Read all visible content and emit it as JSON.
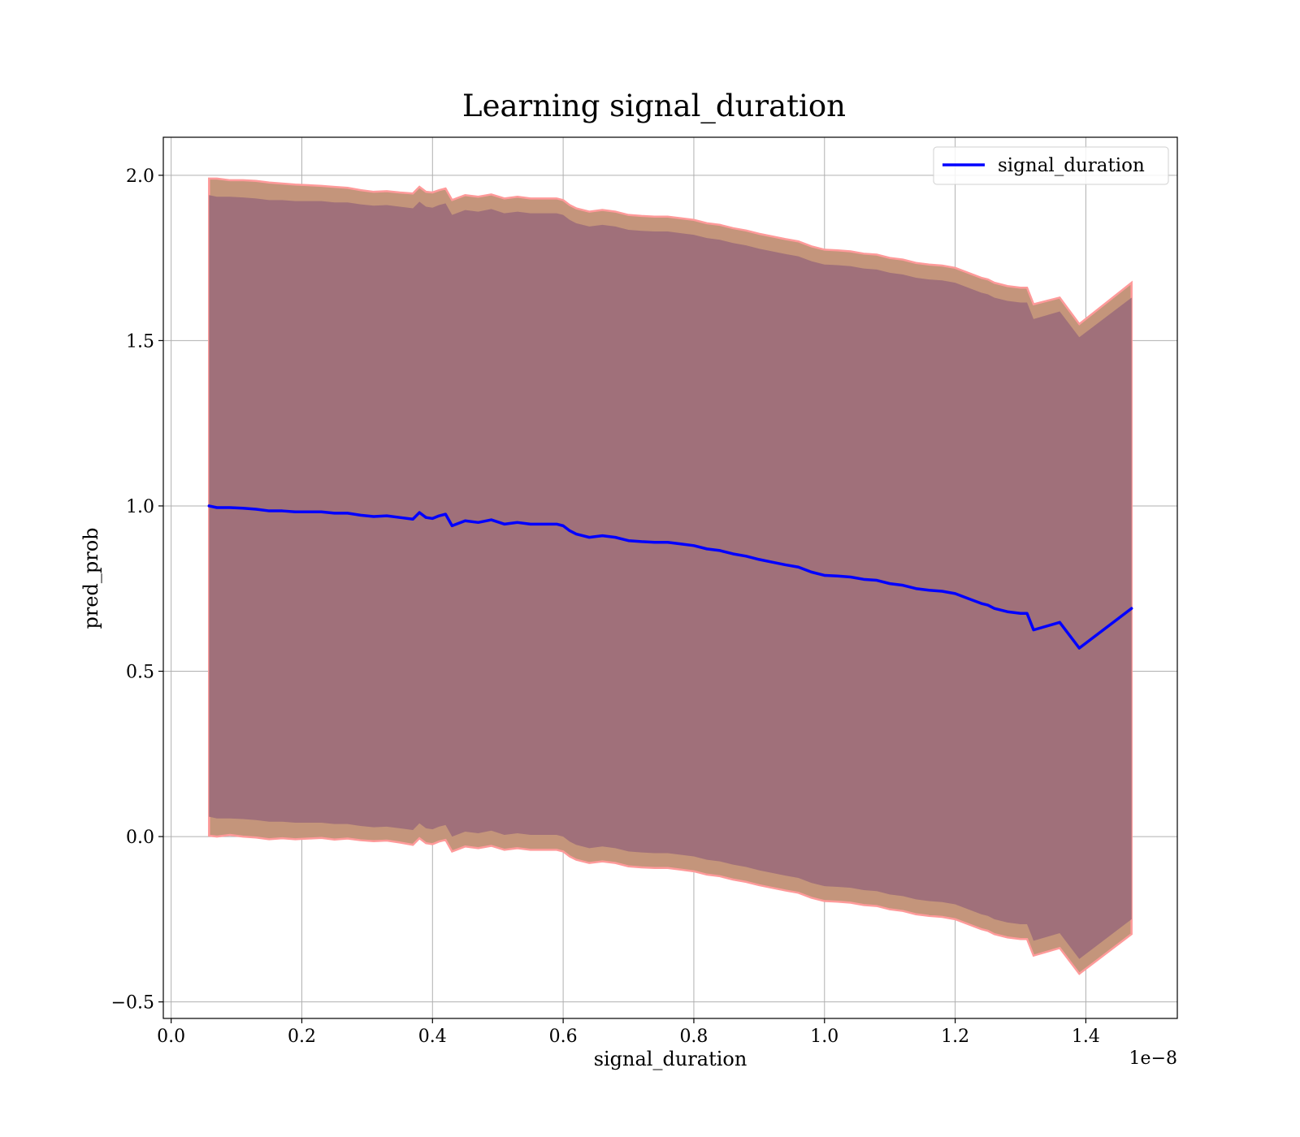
{
  "chart_data": {
    "type": "line",
    "title": "Learning signal_duration",
    "xlabel": "signal_duration",
    "ylabel": "pred_prob",
    "x_offset_text": "1e−8",
    "xlim": [
      -0.012,
      1.54
    ],
    "ylim": [
      -0.55,
      2.115
    ],
    "xticks": [
      0.0,
      0.2,
      0.4,
      0.6,
      0.8,
      1.0,
      1.2,
      1.4
    ],
    "xtick_labels": [
      "0.0",
      "0.2",
      "0.4",
      "0.6",
      "0.8",
      "1.0",
      "1.2",
      "1.4"
    ],
    "yticks": [
      -0.5,
      0.0,
      0.5,
      1.0,
      1.5,
      2.0
    ],
    "ytick_labels": [
      "−0.5",
      "0.0",
      "0.5",
      "1.0",
      "1.5",
      "2.0"
    ],
    "grid": true,
    "legend_position": "top-right",
    "colors": {
      "line": "#0000ff",
      "inner_band": "#a0707a",
      "outer_band": "#c4957b",
      "band_edge": "#ff9a9a",
      "frame": "#000000"
    },
    "series": [
      {
        "name": "signal_duration",
        "x": [
          0.058,
          0.07,
          0.09,
          0.11,
          0.13,
          0.15,
          0.17,
          0.19,
          0.21,
          0.23,
          0.25,
          0.27,
          0.29,
          0.31,
          0.33,
          0.35,
          0.37,
          0.38,
          0.39,
          0.4,
          0.41,
          0.42,
          0.43,
          0.45,
          0.47,
          0.49,
          0.51,
          0.53,
          0.55,
          0.57,
          0.59,
          0.6,
          0.61,
          0.62,
          0.64,
          0.66,
          0.68,
          0.7,
          0.72,
          0.74,
          0.76,
          0.78,
          0.8,
          0.82,
          0.84,
          0.86,
          0.88,
          0.9,
          0.92,
          0.94,
          0.96,
          0.98,
          1.0,
          1.02,
          1.04,
          1.06,
          1.08,
          1.1,
          1.12,
          1.14,
          1.16,
          1.18,
          1.2,
          1.22,
          1.24,
          1.25,
          1.26,
          1.28,
          1.3,
          1.31,
          1.32,
          1.36,
          1.39,
          1.47
        ],
        "y": [
          1.0,
          0.995,
          0.995,
          0.993,
          0.99,
          0.985,
          0.985,
          0.982,
          0.982,
          0.982,
          0.978,
          0.978,
          0.972,
          0.968,
          0.97,
          0.965,
          0.96,
          0.98,
          0.965,
          0.962,
          0.97,
          0.975,
          0.94,
          0.955,
          0.95,
          0.958,
          0.945,
          0.95,
          0.945,
          0.945,
          0.945,
          0.94,
          0.925,
          0.915,
          0.905,
          0.91,
          0.905,
          0.895,
          0.892,
          0.89,
          0.89,
          0.885,
          0.88,
          0.87,
          0.865,
          0.855,
          0.848,
          0.838,
          0.83,
          0.822,
          0.815,
          0.8,
          0.79,
          0.788,
          0.785,
          0.778,
          0.775,
          0.765,
          0.76,
          0.75,
          0.745,
          0.742,
          0.735,
          0.72,
          0.705,
          0.7,
          0.69,
          0.68,
          0.675,
          0.675,
          0.625,
          0.648,
          0.57,
          0.69
        ]
      }
    ],
    "bands": [
      {
        "kind": "outer",
        "upper": [
          1.99,
          1.99,
          1.985,
          1.985,
          1.983,
          1.978,
          1.975,
          1.972,
          1.97,
          1.968,
          1.965,
          1.962,
          1.955,
          1.95,
          1.952,
          1.948,
          1.945,
          1.965,
          1.95,
          1.948,
          1.955,
          1.96,
          1.925,
          1.94,
          1.935,
          1.942,
          1.93,
          1.935,
          1.93,
          1.93,
          1.93,
          1.925,
          1.91,
          1.9,
          1.89,
          1.895,
          1.89,
          1.88,
          1.877,
          1.875,
          1.875,
          1.87,
          1.865,
          1.855,
          1.85,
          1.84,
          1.833,
          1.823,
          1.815,
          1.807,
          1.8,
          1.785,
          1.775,
          1.773,
          1.77,
          1.763,
          1.76,
          1.75,
          1.745,
          1.735,
          1.73,
          1.727,
          1.72,
          1.705,
          1.69,
          1.685,
          1.675,
          1.665,
          1.66,
          1.66,
          1.61,
          1.63,
          1.55,
          1.675
        ],
        "lower": [
          0.003,
          0.0,
          0.005,
          0.0,
          -0.003,
          -0.008,
          -0.005,
          -0.008,
          -0.006,
          -0.004,
          -0.009,
          -0.006,
          -0.011,
          -0.014,
          -0.012,
          -0.018,
          -0.025,
          -0.005,
          -0.02,
          -0.023,
          -0.015,
          -0.01,
          -0.045,
          -0.03,
          -0.035,
          -0.028,
          -0.04,
          -0.035,
          -0.04,
          -0.04,
          -0.04,
          -0.045,
          -0.06,
          -0.07,
          -0.08,
          -0.075,
          -0.08,
          -0.09,
          -0.093,
          -0.095,
          -0.095,
          -0.1,
          -0.105,
          -0.115,
          -0.12,
          -0.13,
          -0.137,
          -0.147,
          -0.155,
          -0.163,
          -0.17,
          -0.185,
          -0.195,
          -0.197,
          -0.2,
          -0.207,
          -0.21,
          -0.22,
          -0.225,
          -0.235,
          -0.24,
          -0.243,
          -0.25,
          -0.265,
          -0.28,
          -0.285,
          -0.295,
          -0.305,
          -0.31,
          -0.31,
          -0.36,
          -0.337,
          -0.415,
          -0.295
        ]
      },
      {
        "kind": "inner",
        "upper": [
          1.94,
          1.935,
          1.935,
          1.933,
          1.93,
          1.925,
          1.925,
          1.922,
          1.922,
          1.922,
          1.918,
          1.918,
          1.912,
          1.908,
          1.91,
          1.905,
          1.9,
          1.92,
          1.905,
          1.902,
          1.91,
          1.915,
          1.88,
          1.895,
          1.89,
          1.898,
          1.885,
          1.89,
          1.885,
          1.885,
          1.885,
          1.88,
          1.865,
          1.855,
          1.845,
          1.85,
          1.845,
          1.835,
          1.832,
          1.83,
          1.83,
          1.825,
          1.82,
          1.81,
          1.805,
          1.795,
          1.788,
          1.778,
          1.77,
          1.762,
          1.755,
          1.74,
          1.73,
          1.728,
          1.725,
          1.718,
          1.715,
          1.705,
          1.7,
          1.69,
          1.685,
          1.682,
          1.675,
          1.66,
          1.645,
          1.64,
          1.63,
          1.62,
          1.615,
          1.615,
          1.565,
          1.588,
          1.51,
          1.63
        ],
        "lower": [
          0.06,
          0.055,
          0.055,
          0.053,
          0.05,
          0.045,
          0.045,
          0.042,
          0.042,
          0.042,
          0.038,
          0.038,
          0.032,
          0.028,
          0.03,
          0.025,
          0.02,
          0.04,
          0.025,
          0.022,
          0.03,
          0.035,
          0.0,
          0.015,
          0.01,
          0.018,
          0.005,
          0.01,
          0.005,
          0.005,
          0.005,
          0.0,
          -0.015,
          -0.025,
          -0.035,
          -0.03,
          -0.035,
          -0.045,
          -0.048,
          -0.05,
          -0.05,
          -0.055,
          -0.06,
          -0.07,
          -0.075,
          -0.085,
          -0.092,
          -0.102,
          -0.11,
          -0.118,
          -0.125,
          -0.14,
          -0.15,
          -0.152,
          -0.155,
          -0.162,
          -0.165,
          -0.175,
          -0.18,
          -0.19,
          -0.195,
          -0.198,
          -0.205,
          -0.22,
          -0.235,
          -0.24,
          -0.25,
          -0.26,
          -0.265,
          -0.265,
          -0.315,
          -0.292,
          -0.37,
          -0.25
        ]
      }
    ]
  }
}
